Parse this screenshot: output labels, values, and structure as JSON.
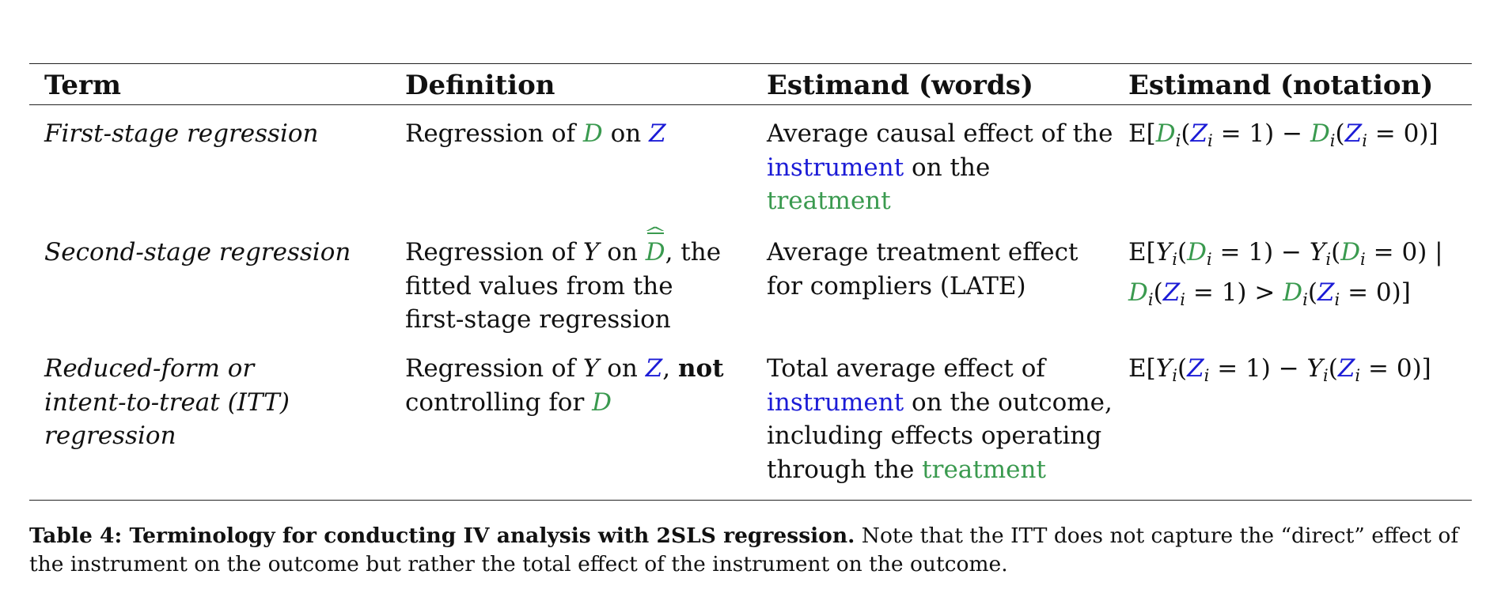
{
  "headers": {
    "term": "Term",
    "definition": "Definition",
    "words": "Estimand (words)",
    "notation": "Estimand (notation)"
  },
  "rows": [
    {
      "term_lines": [
        "First-stage regression"
      ],
      "definition": {
        "prefix": "Regression of ",
        "var1": "D",
        "mid": " on ",
        "var2": "Z"
      },
      "words": {
        "line1": "Average causal effect of the",
        "instrument": "instrument",
        "line2_rest": " on the",
        "treatment": "treatment"
      },
      "notation": "E[Dᵢ(Zᵢ = 1) − Dᵢ(Zᵢ = 0)]"
    },
    {
      "term_lines": [
        "Second-stage regression"
      ],
      "definition": {
        "prefix": "Regression of ",
        "var1": "Y",
        "mid": " on ",
        "var2": "D",
        "suffix": ", the",
        "line2": "fitted values from the",
        "line3": "first-stage regression"
      },
      "words": {
        "line1": "Average treatment effect",
        "line2": "for compliers (LATE)"
      },
      "notation": "E[Yᵢ(Dᵢ = 1) − Yᵢ(Dᵢ = 0) | Dᵢ(Zᵢ = 1) > Dᵢ(Zᵢ = 0)]"
    },
    {
      "term_lines": [
        "Reduced-form or",
        "intent-to-treat (ITT)",
        "regression"
      ],
      "definition": {
        "prefix": "Regression of ",
        "var1": "Y",
        "mid": " on ",
        "var2": "Z",
        "sep": ", ",
        "bold": "not",
        "line2": "controlling for ",
        "var3": "D"
      },
      "words": {
        "line1": "Total average effect of",
        "instrument": "instrument",
        "line2_rest": " on the outcome,",
        "line3": "including effects operating",
        "line4": "through the ",
        "treatment": "treatment"
      },
      "notation": "E[Yᵢ(Zᵢ = 1) − Yᵢ(Zᵢ = 0)]"
    }
  ],
  "caption": {
    "bold": "Table 4: Terminology for conducting IV analysis with 2SLS regression.",
    "text": " Note that the ITT does not capture the “direct” effect of the instrument on the outcome but rather the total effect of the instrument on the outcome."
  },
  "colors": {
    "treatment": "#3a9a4f",
    "instrument": "#1b1bd6"
  }
}
